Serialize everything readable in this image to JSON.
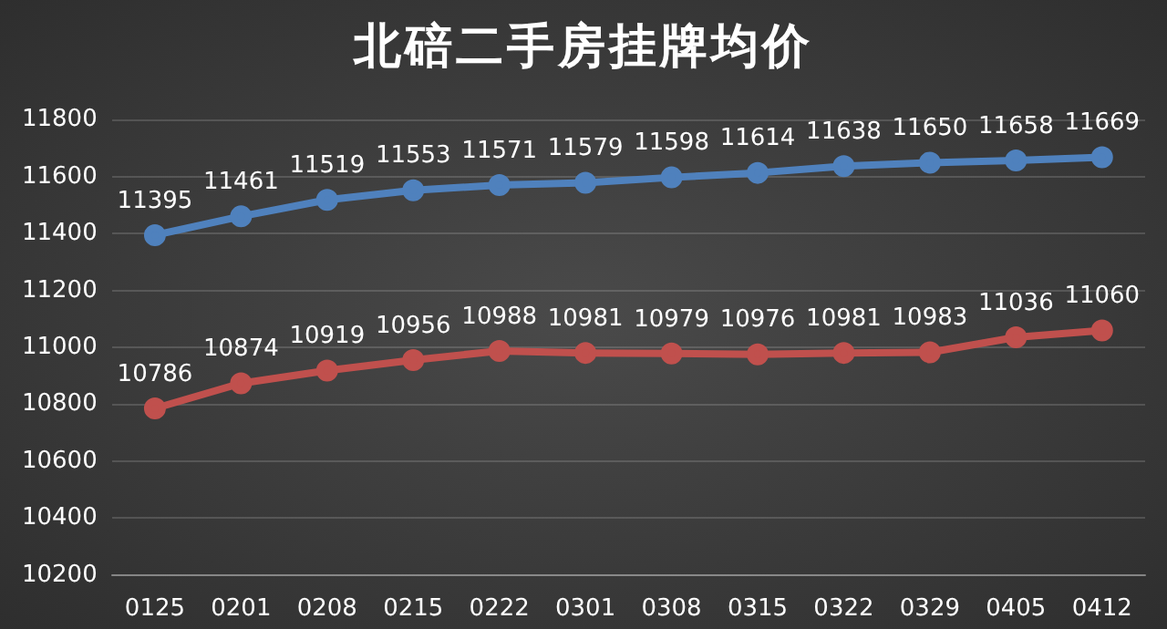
{
  "chart_data": {
    "type": "line",
    "title": "北碚二手房挂牌均价",
    "categories": [
      "0125",
      "0201",
      "0208",
      "0215",
      "0222",
      "0301",
      "0308",
      "0315",
      "0322",
      "0329",
      "0405",
      "0412"
    ],
    "series": [
      {
        "color": "#4f81bd",
        "values": [
          11395,
          11461,
          11519,
          11553,
          11571,
          11579,
          11598,
          11614,
          11638,
          11650,
          11658,
          11669
        ]
      },
      {
        "color": "#c0504d",
        "values": [
          10786,
          10874,
          10919,
          10956,
          10988,
          10981,
          10979,
          10976,
          10981,
          10983,
          11036,
          11060
        ]
      }
    ],
    "ylim": [
      10200,
      11800
    ],
    "yticks": [
      10200,
      10400,
      10600,
      10800,
      11000,
      11200,
      11400,
      11600,
      11800
    ],
    "grid": "y",
    "marker": "circle",
    "line_style": "solid",
    "data_labels": true
  }
}
